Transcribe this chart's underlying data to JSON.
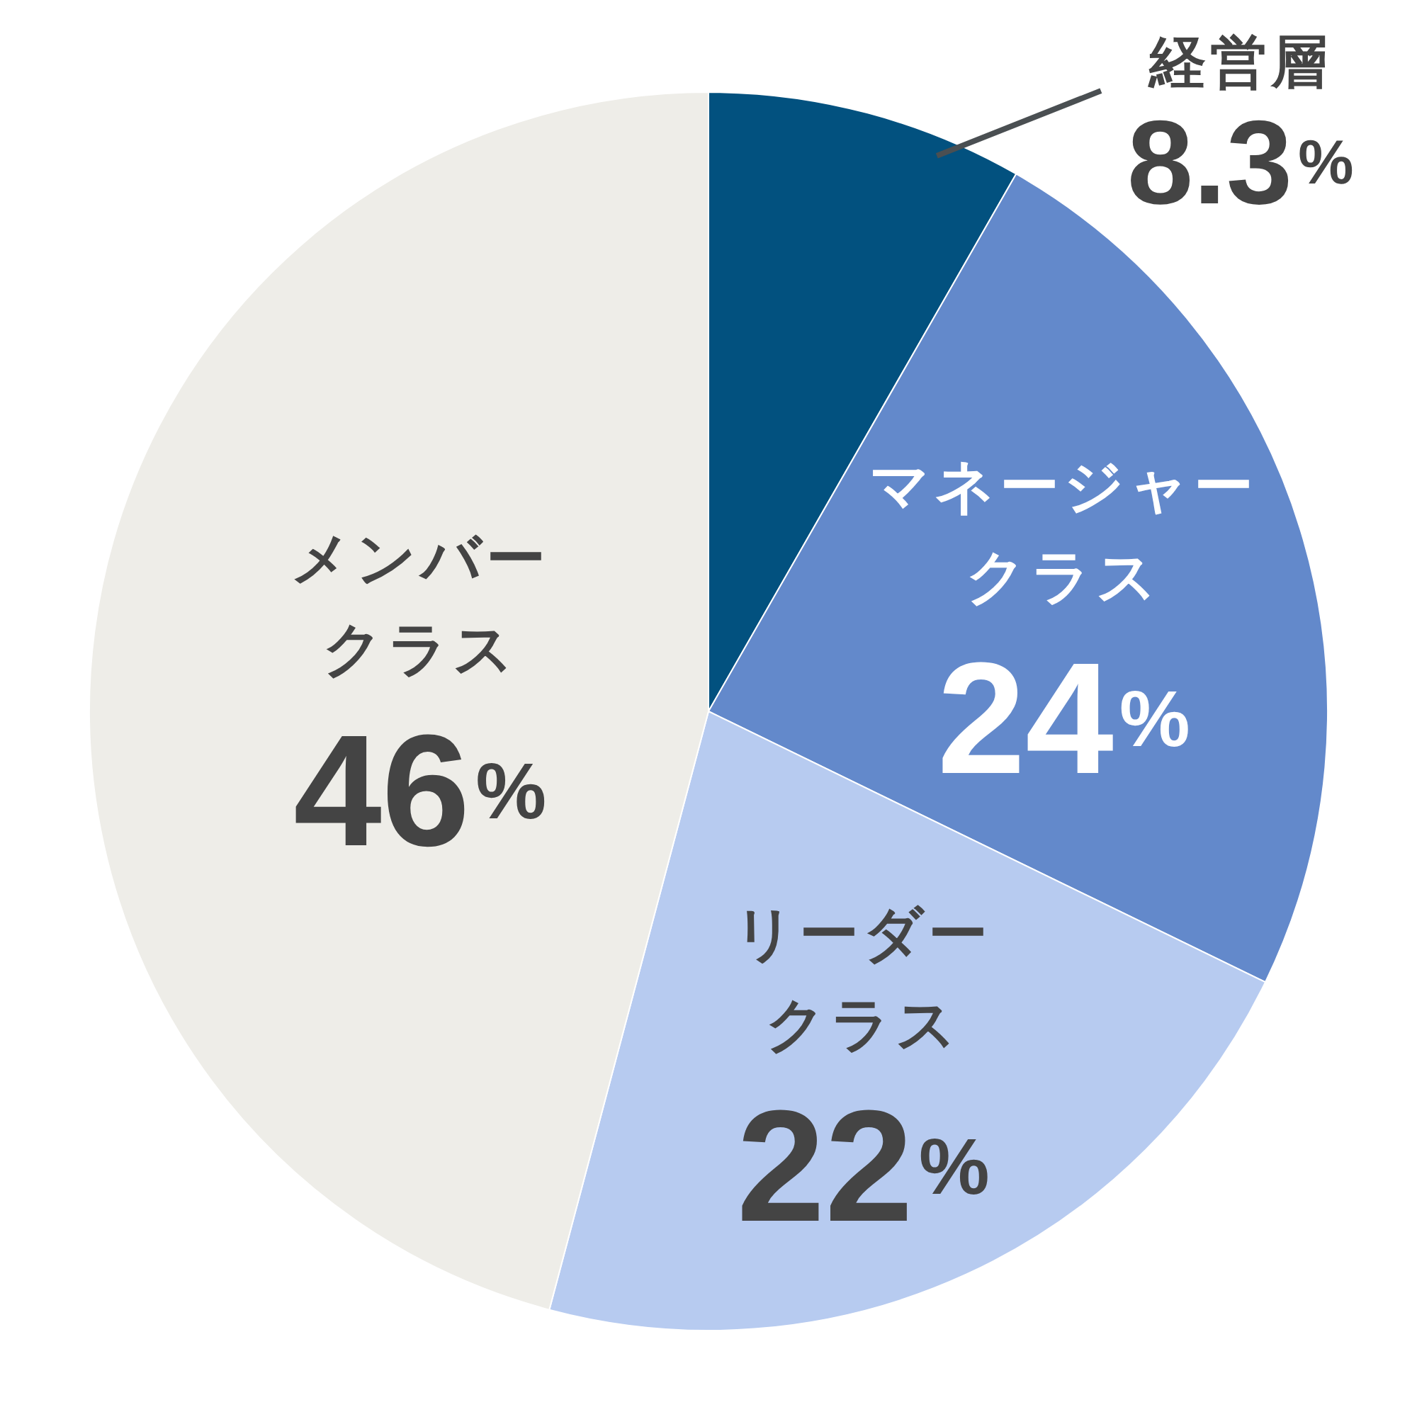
{
  "chart_data": {
    "type": "pie",
    "categories": [
      "経営層",
      "マネージャークラス",
      "リーダークラス",
      "メンバークラス"
    ],
    "values": [
      8.3,
      24,
      22,
      46
    ],
    "colors": [
      "#02517f",
      "#6389cb",
      "#b7cbf0",
      "#eeede8"
    ],
    "value_labels": [
      "8.3%",
      "24%",
      "22%",
      "46%"
    ]
  }
}
